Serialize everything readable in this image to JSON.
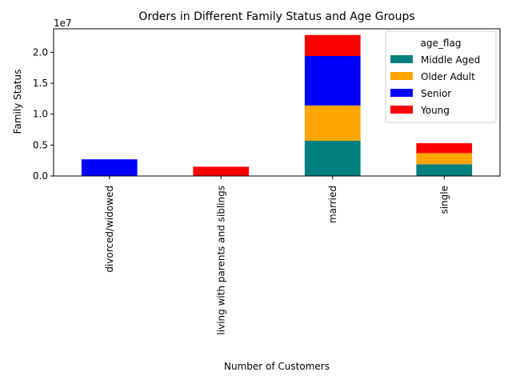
{
  "chart_data": {
    "type": "bar",
    "stacked": true,
    "title": "Orders in Different Family Status and Age Groups",
    "xlabel": "Number of Customers",
    "ylabel": "Family Status",
    "y_offset_label": "1e7",
    "ylim": [
      0,
      23800000
    ],
    "yticks": [
      0,
      5000000,
      10000000,
      15000000,
      20000000
    ],
    "ytick_labels": [
      "0.0",
      "0.5",
      "1.0",
      "1.5",
      "2.0"
    ],
    "categories": [
      "divorced/widowed",
      "living with parents and siblings",
      "married",
      "single"
    ],
    "legend_title": "age_flag",
    "legend_position": "top-right",
    "series": [
      {
        "name": "Middle Aged",
        "color": "#008080",
        "values": [
          0,
          0,
          5700000,
          1900000
        ]
      },
      {
        "name": "Older Adult",
        "color": "#FFA500",
        "values": [
          0,
          0,
          5700000,
          1800000
        ]
      },
      {
        "name": "Senior",
        "color": "#0000FF",
        "values": [
          2700000,
          0,
          8000000,
          0
        ]
      },
      {
        "name": "Young",
        "color": "#FF0000",
        "values": [
          0,
          1500000,
          3400000,
          1600000
        ]
      }
    ]
  }
}
